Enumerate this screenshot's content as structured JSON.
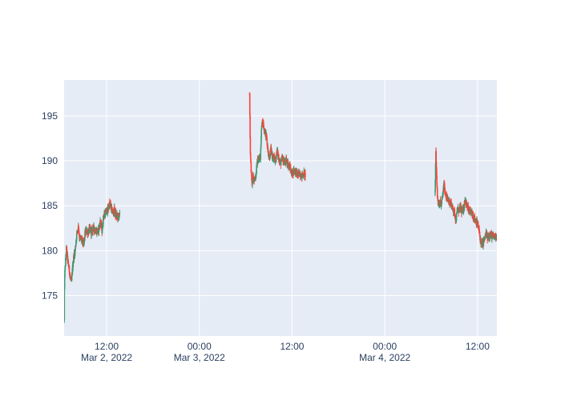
{
  "chart_data": {
    "type": "candlestick",
    "title": "",
    "xlabel": "",
    "ylabel": "",
    "y_range": [
      170.5,
      199
    ],
    "y_ticks": [
      175,
      180,
      185,
      190,
      195
    ],
    "x_range_hours": [
      6.5,
      62.5
    ],
    "x_ticks": [
      {
        "hour": 12,
        "label_line1": "12:00",
        "label_line2": "Mar 2, 2022"
      },
      {
        "hour": 24,
        "label_line1": "00:00",
        "label_line2": "Mar 3, 2022"
      },
      {
        "hour": 36,
        "label_line1": "12:00",
        "label_line2": ""
      },
      {
        "hour": 48,
        "label_line1": "00:00",
        "label_line2": "Mar 4, 2022"
      },
      {
        "hour": 60,
        "label_line1": "12:00",
        "label_line2": ""
      }
    ],
    "grid": true,
    "colors": {
      "increasing": "#3D9970",
      "decreasing": "#FF4136",
      "plot_bg": "#E5ECF6",
      "grid": "#FFFFFF",
      "text": "#2a3f5f"
    },
    "sessions": [
      {
        "date": "Mar 2, 2022",
        "start_hour": 6.5,
        "end_hour": 13.7,
        "path": [
          [
            6.5,
            172.2
          ],
          [
            6.55,
            177.0
          ],
          [
            6.65,
            178.3
          ],
          [
            6.8,
            180.2
          ],
          [
            6.95,
            179.0
          ],
          [
            7.1,
            178.2
          ],
          [
            7.3,
            177.0
          ],
          [
            7.45,
            176.4
          ],
          [
            7.6,
            178.2
          ],
          [
            7.75,
            179.4
          ],
          [
            7.9,
            179.8
          ],
          [
            8.05,
            181.2
          ],
          [
            8.2,
            182.2
          ],
          [
            8.35,
            182.7
          ],
          [
            8.5,
            181.4
          ],
          [
            8.7,
            181.3
          ],
          [
            8.9,
            181.0
          ],
          [
            9.05,
            180.6
          ],
          [
            9.2,
            181.9
          ],
          [
            9.4,
            182.2
          ],
          [
            9.6,
            182.0
          ],
          [
            9.8,
            182.4
          ],
          [
            10.0,
            182.1
          ],
          [
            10.3,
            182.5
          ],
          [
            10.6,
            182.2
          ],
          [
            10.9,
            182.1
          ],
          [
            11.2,
            183.3
          ],
          [
            11.4,
            182.2
          ],
          [
            11.6,
            183.9
          ],
          [
            11.8,
            184.1
          ],
          [
            12.0,
            184.4
          ],
          [
            12.2,
            184.6
          ],
          [
            12.4,
            185.3
          ],
          [
            12.6,
            184.7
          ],
          [
            12.8,
            184.2
          ],
          [
            13.0,
            184.5
          ],
          [
            13.2,
            183.9
          ],
          [
            13.45,
            183.8
          ],
          [
            13.7,
            183.9
          ]
        ]
      },
      {
        "date": "Mar 3, 2022",
        "start_hour": 30.5,
        "end_hour": 37.7,
        "path": [
          [
            30.5,
            197.5
          ],
          [
            30.6,
            190.5
          ],
          [
            30.7,
            189.0
          ],
          [
            30.8,
            187.4
          ],
          [
            30.95,
            188.2
          ],
          [
            31.1,
            187.9
          ],
          [
            31.3,
            188.3
          ],
          [
            31.5,
            189.9
          ],
          [
            31.7,
            190.2
          ],
          [
            31.9,
            190.4
          ],
          [
            32.0,
            193.0
          ],
          [
            32.15,
            194.6
          ],
          [
            32.3,
            194.0
          ],
          [
            32.5,
            193.2
          ],
          [
            32.7,
            192.6
          ],
          [
            32.9,
            191.0
          ],
          [
            33.05,
            190.3
          ],
          [
            33.25,
            191.2
          ],
          [
            33.45,
            190.5
          ],
          [
            33.65,
            190.2
          ],
          [
            33.85,
            190.0
          ],
          [
            34.05,
            191.2
          ],
          [
            34.25,
            190.3
          ],
          [
            34.5,
            189.7
          ],
          [
            34.75,
            190.3
          ],
          [
            35.0,
            189.8
          ],
          [
            35.25,
            190.0
          ],
          [
            35.5,
            189.6
          ],
          [
            35.75,
            189.2
          ],
          [
            36.0,
            188.5
          ],
          [
            36.25,
            189.0
          ],
          [
            36.5,
            188.8
          ],
          [
            36.75,
            188.4
          ],
          [
            37.0,
            188.6
          ],
          [
            37.25,
            188.3
          ],
          [
            37.5,
            188.6
          ],
          [
            37.7,
            188.4
          ]
        ]
      },
      {
        "date": "Mar 4, 2022",
        "start_hour": 54.5,
        "end_hour": 62.5,
        "path": [
          [
            54.5,
            186.5
          ],
          [
            54.6,
            190.9
          ],
          [
            54.7,
            188.4
          ],
          [
            54.8,
            186.0
          ],
          [
            54.95,
            185.2
          ],
          [
            55.1,
            185.4
          ],
          [
            55.3,
            185.1
          ],
          [
            55.5,
            186.2
          ],
          [
            55.65,
            187.4
          ],
          [
            55.8,
            186.6
          ],
          [
            56.0,
            185.8
          ],
          [
            56.2,
            185.6
          ],
          [
            56.4,
            185.4
          ],
          [
            56.6,
            185.2
          ],
          [
            56.8,
            184.6
          ],
          [
            57.0,
            184.3
          ],
          [
            57.2,
            183.4
          ],
          [
            57.4,
            184.6
          ],
          [
            57.6,
            184.4
          ],
          [
            57.8,
            184.8
          ],
          [
            58.0,
            184.2
          ],
          [
            58.2,
            184.7
          ],
          [
            58.4,
            185.8
          ],
          [
            58.6,
            185.0
          ],
          [
            58.8,
            184.6
          ],
          [
            59.0,
            184.2
          ],
          [
            59.2,
            184.3
          ],
          [
            59.4,
            183.9
          ],
          [
            59.6,
            183.6
          ],
          [
            59.8,
            183.3
          ],
          [
            60.0,
            182.9
          ],
          [
            60.2,
            182.2
          ],
          [
            60.35,
            181.3
          ],
          [
            60.5,
            180.7
          ],
          [
            60.7,
            180.8
          ],
          [
            60.9,
            181.3
          ],
          [
            61.1,
            181.9
          ],
          [
            61.3,
            181.4
          ],
          [
            61.6,
            181.8
          ],
          [
            62.0,
            181.5
          ],
          [
            62.5,
            181.7
          ]
        ]
      }
    ]
  }
}
